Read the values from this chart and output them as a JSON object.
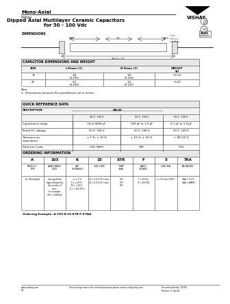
{
  "title_main": "Mono-Axial",
  "title_sub": "Vishay",
  "title_center": "Dipped Axial Multilayer Ceramic Capacitors\nfor 50 - 100 Vdc",
  "dimensions_label": "DIMENSIONS",
  "bg_color": "#ffffff",
  "table1_title": "CAPACITOR DIMENSIONS AND WEIGHT",
  "table2_title": "QUICK REFERENCE DATA",
  "table3_title": "ORDERING INFORMATION",
  "order_cols": [
    "A",
    "103",
    "K",
    "15",
    "X7R",
    "F",
    "5",
    "TAA"
  ],
  "order_sub": [
    "PRODUCT\nTYPE",
    "CAPACITANCE\nCODE",
    "CAP\nTOLERANCE",
    "SIZE CODE",
    "TEMP\nCHAR",
    "RATED\nVOLTAGE",
    "LEAD DIA.",
    "PACKAGING"
  ],
  "order_desc": [
    "A = Mono-Axial",
    "Two significant\ndigits followed by\nthe number of\nzeros.\nFor example:\n473 = 47000 pF",
    "J = ± 5 %\nK = ± 10 %\nM = ± 20 %\nZ = + 80/-20 %",
    "15 = 3.8 (0.15\") max.\n20 = 5.0 (0.20\") max.",
    "C0G\nX7R\nY5V",
    "F = 50 VDC\nH = 100 VDC",
    "5 = 0.5 mm (0.20\")",
    "TAA = T & R\nUAA = AMMO"
  ],
  "order_example": "Ordering Example: A-103-K-15-X7R-F-5-TAA",
  "footer_left": "www.vishay.com",
  "footer_center": "If not in range chart or for technical questions please contact cml@vishay.com",
  "footer_right": "Document Number: 45194\nRevision: 17-Jan-08",
  "footer_pg": "20"
}
